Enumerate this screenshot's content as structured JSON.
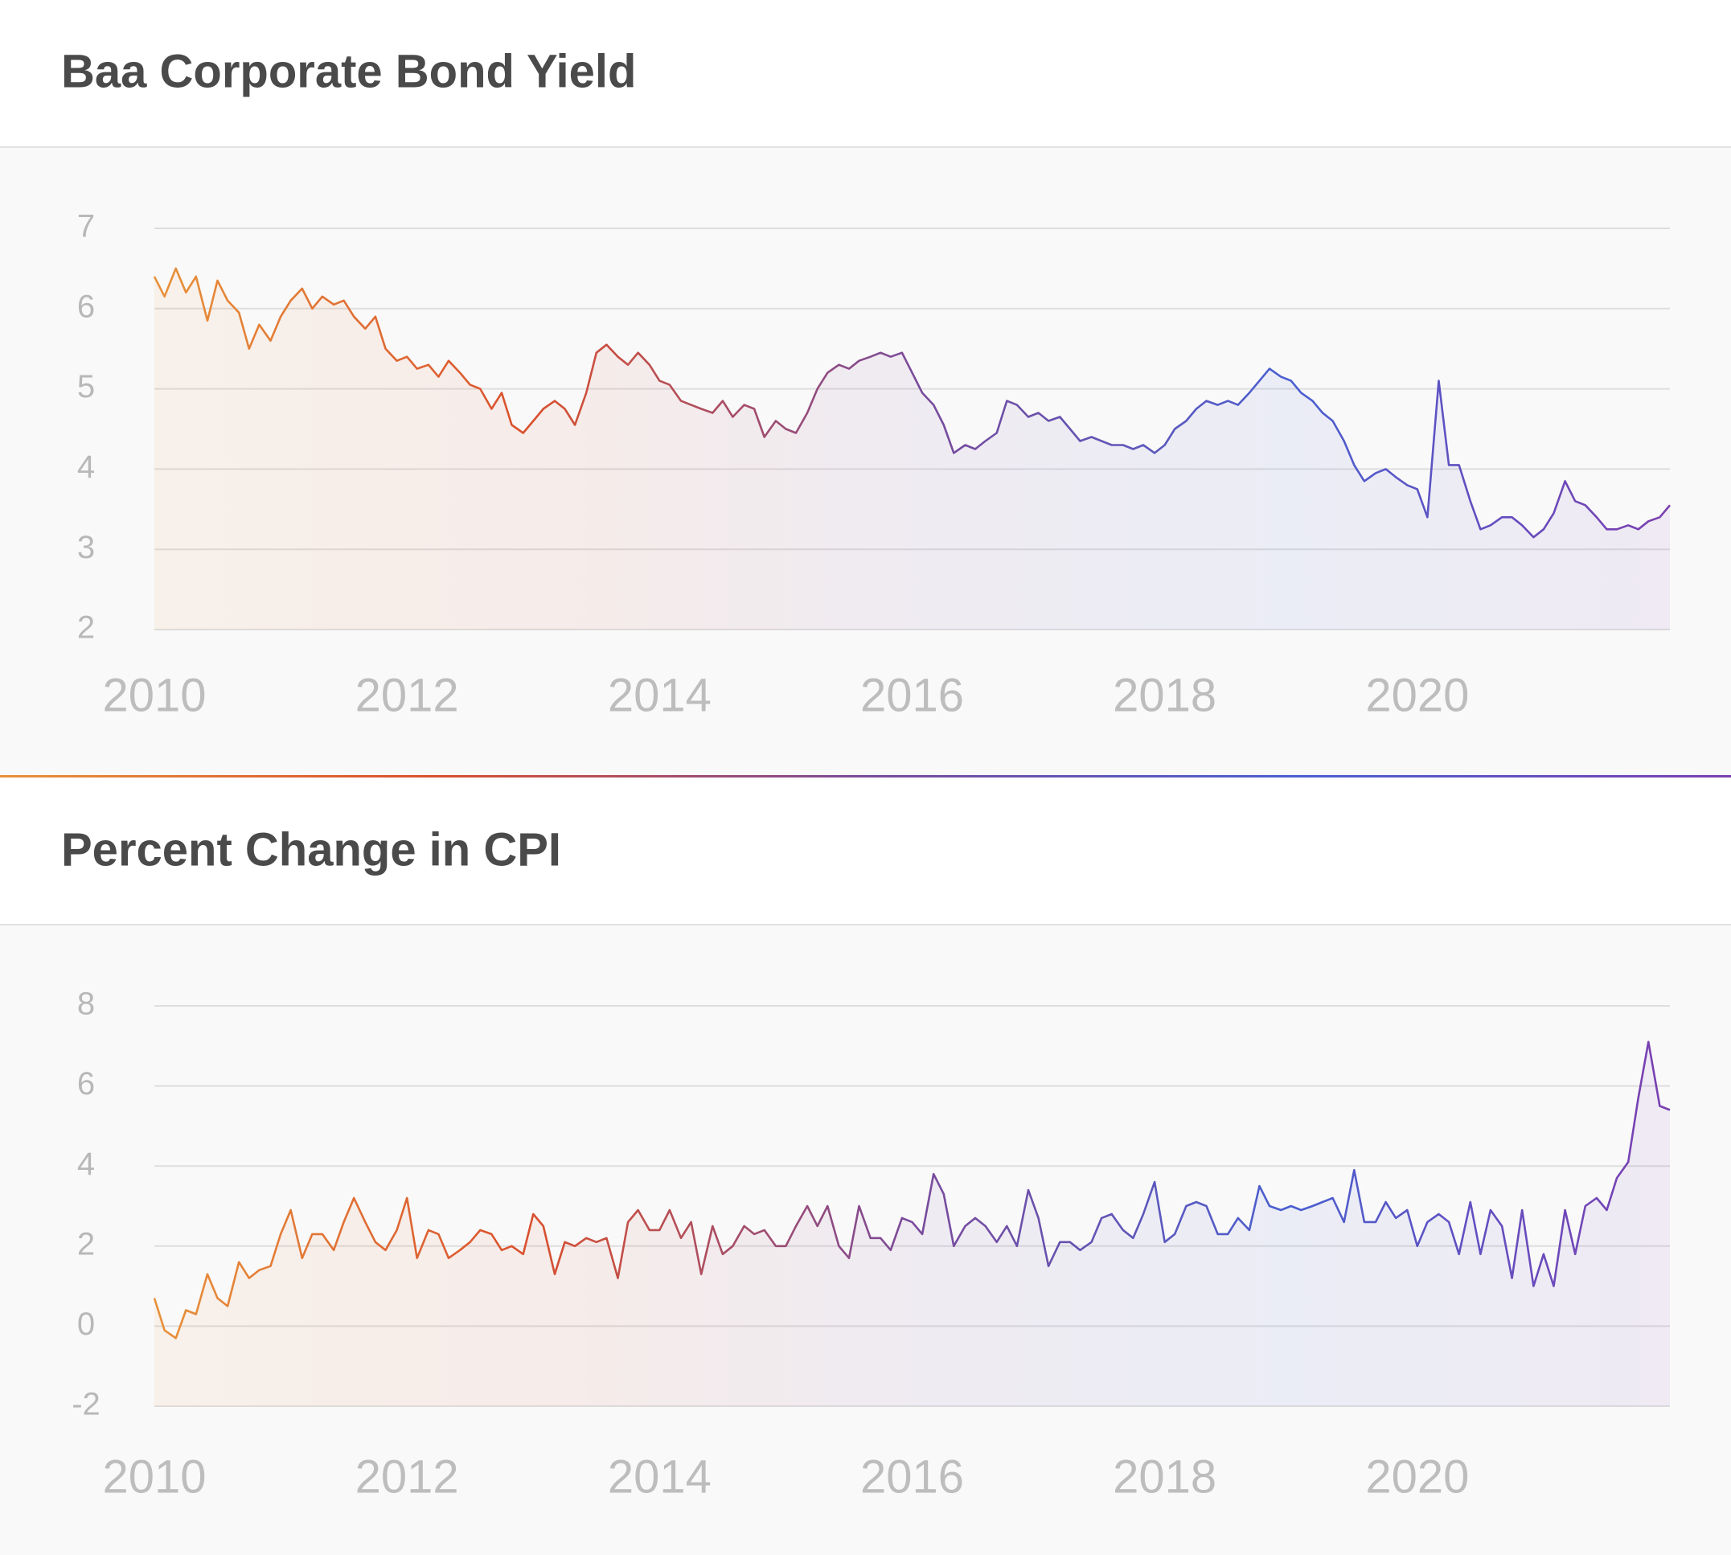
{
  "chart_data": [
    {
      "type": "line",
      "title": "Baa Corporate Bond Yield",
      "xlim": [
        2010,
        2022
      ],
      "xticks": [
        2010,
        2012,
        2014,
        2016,
        2018,
        2020
      ],
      "ylim": [
        2,
        7
      ],
      "yticks": [
        2,
        3,
        4,
        5,
        6,
        7
      ],
      "grid": true,
      "line_gradient": [
        "#e8913a",
        "#d9502e",
        "#7a4a9a",
        "#4a5fd0",
        "#7b3fb0"
      ],
      "x": [
        2010,
        2010.08,
        2010.17,
        2010.25,
        2010.33,
        2010.42,
        2010.5,
        2010.58,
        2010.67,
        2010.75,
        2010.83,
        2010.92,
        2011,
        2011.08,
        2011.17,
        2011.25,
        2011.33,
        2011.42,
        2011.5,
        2011.58,
        2011.67,
        2011.75,
        2011.83,
        2011.92,
        2012,
        2012.08,
        2012.17,
        2012.25,
        2012.33,
        2012.42,
        2012.5,
        2012.58,
        2012.67,
        2012.75,
        2012.83,
        2012.92,
        2013,
        2013.08,
        2013.17,
        2013.25,
        2013.33,
        2013.42,
        2013.5,
        2013.58,
        2013.67,
        2013.75,
        2013.83,
        2013.92,
        2014,
        2014.08,
        2014.17,
        2014.25,
        2014.33,
        2014.42,
        2014.5,
        2014.58,
        2014.67,
        2014.75,
        2014.83,
        2014.92,
        2015,
        2015.08,
        2015.17,
        2015.25,
        2015.33,
        2015.42,
        2015.5,
        2015.58,
        2015.67,
        2015.75,
        2015.83,
        2015.92,
        2016,
        2016.08,
        2016.17,
        2016.25,
        2016.33,
        2016.42,
        2016.5,
        2016.58,
        2016.67,
        2016.75,
        2016.83,
        2016.92,
        2017,
        2017.08,
        2017.17,
        2017.25,
        2017.33,
        2017.42,
        2017.5,
        2017.58,
        2017.67,
        2017.75,
        2017.83,
        2017.92,
        2018,
        2018.08,
        2018.17,
        2018.25,
        2018.33,
        2018.42,
        2018.5,
        2018.58,
        2018.67,
        2018.75,
        2018.83,
        2018.92,
        2019,
        2019.08,
        2019.17,
        2019.25,
        2019.33,
        2019.42,
        2019.5,
        2019.58,
        2019.67,
        2019.75,
        2019.83,
        2019.92,
        2020,
        2020.08,
        2020.17,
        2020.25,
        2020.33,
        2020.42,
        2020.5,
        2020.58,
        2020.67,
        2020.75,
        2020.83,
        2020.92,
        2021,
        2021.08,
        2021.17,
        2021.25,
        2021.33,
        2021.42,
        2021.5,
        2021.58,
        2021.67,
        2021.75,
        2021.83,
        2021.92,
        2022
      ],
      "values": [
        6.4,
        6.15,
        6.5,
        6.2,
        6.4,
        5.85,
        6.35,
        6.1,
        5.95,
        5.5,
        5.8,
        5.6,
        5.9,
        6.1,
        6.25,
        6.0,
        6.15,
        6.05,
        6.1,
        5.9,
        5.75,
        5.9,
        5.5,
        5.35,
        5.4,
        5.25,
        5.3,
        5.15,
        5.35,
        5.2,
        5.05,
        5.0,
        4.75,
        4.95,
        4.55,
        4.45,
        4.6,
        4.75,
        4.85,
        4.75,
        4.55,
        4.95,
        5.45,
        5.55,
        5.4,
        5.3,
        5.45,
        5.3,
        5.1,
        5.05,
        4.85,
        4.8,
        4.75,
        4.7,
        4.85,
        4.65,
        4.8,
        4.75,
        4.4,
        4.6,
        4.5,
        4.45,
        4.7,
        5.0,
        5.2,
        5.3,
        5.25,
        5.35,
        5.4,
        5.45,
        5.4,
        5.45,
        5.2,
        4.95,
        4.8,
        4.55,
        4.2,
        4.3,
        4.25,
        4.35,
        4.45,
        4.85,
        4.8,
        4.65,
        4.7,
        4.6,
        4.65,
        4.5,
        4.35,
        4.4,
        4.35,
        4.3,
        4.3,
        4.25,
        4.3,
        4.2,
        4.3,
        4.5,
        4.6,
        4.75,
        4.85,
        4.8,
        4.85,
        4.8,
        4.95,
        5.1,
        5.25,
        5.15,
        5.1,
        4.95,
        4.85,
        4.7,
        4.6,
        4.35,
        4.05,
        3.85,
        3.95,
        4.0,
        3.9,
        3.8,
        3.75,
        3.4,
        5.1,
        4.05,
        4.05,
        3.6,
        3.25,
        3.3,
        3.4,
        3.4,
        3.3,
        3.15,
        3.25,
        3.45,
        3.85,
        3.6,
        3.55,
        3.4,
        3.25,
        3.25,
        3.3,
        3.25,
        3.35,
        3.4,
        3.55
      ]
    },
    {
      "type": "line",
      "title": "Percent Change in CPI",
      "xlim": [
        2010,
        2022
      ],
      "xticks": [
        2010,
        2012,
        2014,
        2016,
        2018,
        2020
      ],
      "ylim": [
        -2,
        8
      ],
      "yticks": [
        -2,
        0,
        2,
        4,
        6,
        8
      ],
      "grid": true,
      "line_gradient": [
        "#e8913a",
        "#d9502e",
        "#7a4a9a",
        "#4a5fd0",
        "#7b3fb0"
      ],
      "x": [
        2010,
        2010.08,
        2010.17,
        2010.25,
        2010.33,
        2010.42,
        2010.5,
        2010.58,
        2010.67,
        2010.75,
        2010.83,
        2010.92,
        2011,
        2011.08,
        2011.17,
        2011.25,
        2011.33,
        2011.42,
        2011.5,
        2011.58,
        2011.67,
        2011.75,
        2011.83,
        2011.92,
        2012,
        2012.08,
        2012.17,
        2012.25,
        2012.33,
        2012.42,
        2012.5,
        2012.58,
        2012.67,
        2012.75,
        2012.83,
        2012.92,
        2013,
        2013.08,
        2013.17,
        2013.25,
        2013.33,
        2013.42,
        2013.5,
        2013.58,
        2013.67,
        2013.75,
        2013.83,
        2013.92,
        2014,
        2014.08,
        2014.17,
        2014.25,
        2014.33,
        2014.42,
        2014.5,
        2014.58,
        2014.67,
        2014.75,
        2014.83,
        2014.92,
        2015,
        2015.08,
        2015.17,
        2015.25,
        2015.33,
        2015.42,
        2015.5,
        2015.58,
        2015.67,
        2015.75,
        2015.83,
        2015.92,
        2016,
        2016.08,
        2016.17,
        2016.25,
        2016.33,
        2016.42,
        2016.5,
        2016.58,
        2016.67,
        2016.75,
        2016.83,
        2016.92,
        2017,
        2017.08,
        2017.17,
        2017.25,
        2017.33,
        2017.42,
        2017.5,
        2017.58,
        2017.67,
        2017.75,
        2017.83,
        2017.92,
        2018,
        2018.08,
        2018.17,
        2018.25,
        2018.33,
        2018.42,
        2018.5,
        2018.58,
        2018.67,
        2018.75,
        2018.83,
        2018.92,
        2019,
        2019.08,
        2019.17,
        2019.25,
        2019.33,
        2019.42,
        2019.5,
        2019.58,
        2019.67,
        2019.75,
        2019.83,
        2019.92,
        2020,
        2020.08,
        2020.17,
        2020.25,
        2020.33,
        2020.42,
        2020.5,
        2020.58,
        2020.67,
        2020.75,
        2020.83,
        2020.92,
        2021,
        2021.08,
        2021.17,
        2021.25,
        2021.33,
        2021.42,
        2021.5,
        2021.58,
        2021.67,
        2021.75,
        2021.83,
        2021.92,
        2022
      ],
      "values": [
        0.7,
        -0.1,
        -0.3,
        0.4,
        0.3,
        1.3,
        0.7,
        0.5,
        1.6,
        1.2,
        1.4,
        1.5,
        2.3,
        2.9,
        1.7,
        2.3,
        2.3,
        1.9,
        2.6,
        3.2,
        2.6,
        2.1,
        1.9,
        2.4,
        3.2,
        1.7,
        2.4,
        2.3,
        1.7,
        1.9,
        2.1,
        2.4,
        2.3,
        1.9,
        2.0,
        1.8,
        2.8,
        2.5,
        1.3,
        2.1,
        2.0,
        2.2,
        2.1,
        2.2,
        1.2,
        2.6,
        2.9,
        2.4,
        2.4,
        2.9,
        2.2,
        2.6,
        1.3,
        2.5,
        1.8,
        2.0,
        2.5,
        2.3,
        2.4,
        2.0,
        2.0,
        2.5,
        3.0,
        2.5,
        3.0,
        2.0,
        1.7,
        3.0,
        2.2,
        2.2,
        1.9,
        2.7,
        2.6,
        2.3,
        3.8,
        3.3,
        2.0,
        2.5,
        2.7,
        2.5,
        2.1,
        2.5,
        2.0,
        3.4,
        2.7,
        1.5,
        2.1,
        2.1,
        1.9,
        2.1,
        2.7,
        2.8,
        2.4,
        2.2,
        2.8,
        3.6,
        2.1,
        2.3,
        3.0,
        3.1,
        3.0,
        2.3,
        2.3,
        2.7,
        2.4,
        3.5,
        3.0,
        2.9,
        3.0,
        2.9,
        3.0,
        3.1,
        3.2,
        2.6,
        3.9,
        2.6,
        2.6,
        3.1,
        2.7,
        2.9,
        2.0,
        2.6,
        2.8,
        2.6,
        1.8,
        3.1,
        1.8,
        2.9,
        2.5,
        1.2,
        2.9,
        1.0,
        1.8,
        1.0,
        2.9,
        1.8,
        3.0,
        3.2,
        2.9,
        3.7,
        4.1,
        5.7,
        7.1,
        5.5,
        5.4
      ]
    }
  ]
}
